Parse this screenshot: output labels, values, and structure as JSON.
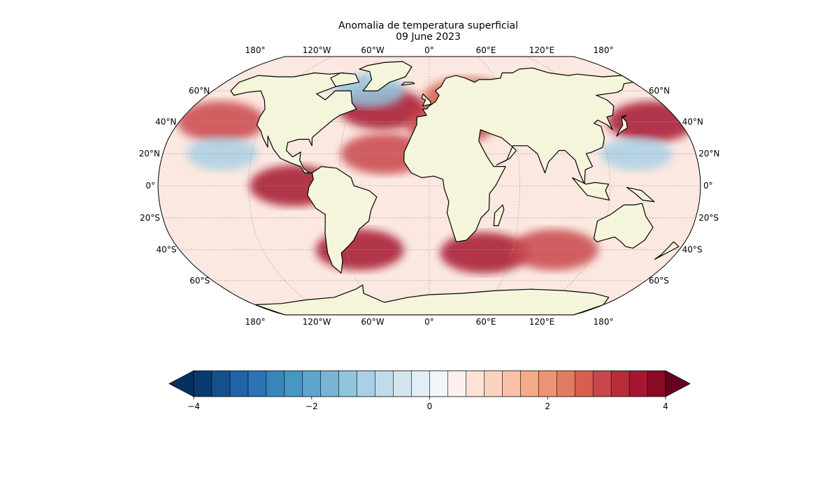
{
  "title": "Anomalia de temperatura superficial",
  "date": "09 June 2023",
  "colors": {
    "land": "#f5f5dc",
    "coast": "#000000",
    "cold_strong": "#053061",
    "warm_strong": "#67001f",
    "neutral": "#f7f7f7"
  },
  "map": {
    "projection": "Robinson",
    "lon_labels_top": [
      "180°",
      "120°W",
      "60°W",
      "0°",
      "60°E",
      "120°E",
      "180°"
    ],
    "lon_labels_bottom": [
      "180°",
      "120°W",
      "60°W",
      "0°",
      "60°E",
      "120°E",
      "180°"
    ],
    "lat_labels_left": [
      "60°N",
      "40°N",
      "20°N",
      "0°",
      "20°S",
      "40°S",
      "60°S"
    ],
    "lat_labels_right": [
      "60°N",
      "40°N",
      "20°N",
      "0°",
      "20°S",
      "40°S",
      "60°S"
    ],
    "lat_values": [
      60,
      40,
      20,
      0,
      -20,
      -40,
      -60
    ],
    "lon_values": [
      -180,
      -120,
      -60,
      0,
      60,
      120,
      180
    ]
  },
  "colorbar": {
    "min": -4,
    "max": 4,
    "step": 0.4,
    "extend": "both",
    "ticks": [
      -4,
      -2,
      0,
      2,
      4
    ],
    "tick_labels": [
      "−4",
      "−2",
      "0",
      "2",
      "4"
    ],
    "colors": [
      "#0a3a70",
      "#15508d",
      "#1f63a8",
      "#2c73b4",
      "#3885bc",
      "#4896c4",
      "#5fa5cd",
      "#78b4d5",
      "#92c5de",
      "#aad0e5",
      "#c0dceb",
      "#d2e6f0",
      "#e2eef5",
      "#f2f6f9",
      "#fbf1ec",
      "#fce3d6",
      "#fbd3c0",
      "#f9c1a7",
      "#f4aa88",
      "#ec9474",
      "#e27c60",
      "#d6604d",
      "#c9474b",
      "#b92c3b",
      "#a6172f",
      "#8a0b25"
    ]
  },
  "chart_data": {
    "type": "heatmap",
    "title": "Anomalia de temperatura superficial",
    "subtitle": "09 June 2023",
    "x_range": [
      -180,
      180
    ],
    "y_range": [
      -90,
      90
    ],
    "colorbar_range": [
      -4,
      4
    ],
    "colorbar_ticks": [
      -4,
      -2,
      0,
      2,
      4
    ],
    "extend": "both",
    "highlights": [
      {
        "lat": 40,
        "lon": 160,
        "anomaly": 3.5
      },
      {
        "lat": 40,
        "lon": -150,
        "anomaly": 3.0
      },
      {
        "lat": 48,
        "lon": -35,
        "anomaly": 3.5
      },
      {
        "lat": 20,
        "lon": -30,
        "anomaly": 3.0
      },
      {
        "lat": 0,
        "lon": -90,
        "anomaly": 3.5
      },
      {
        "lat": -40,
        "lon": -50,
        "anomaly": 3.5
      },
      {
        "lat": -42,
        "lon": 40,
        "anomaly": 3.5
      },
      {
        "lat": -40,
        "lon": 90,
        "anomaly": 3.0
      },
      {
        "lat": 55,
        "lon": 30,
        "anomaly": 2.5
      },
      {
        "lat": 38,
        "lon": 15,
        "anomaly": 3.0
      },
      {
        "lat": 20,
        "lon": -140,
        "anomaly": -1.0
      },
      {
        "lat": 60,
        "lon": -50,
        "anomaly": -1.5
      },
      {
        "lat": 20,
        "lon": 140,
        "anomaly": -1.0
      }
    ]
  }
}
